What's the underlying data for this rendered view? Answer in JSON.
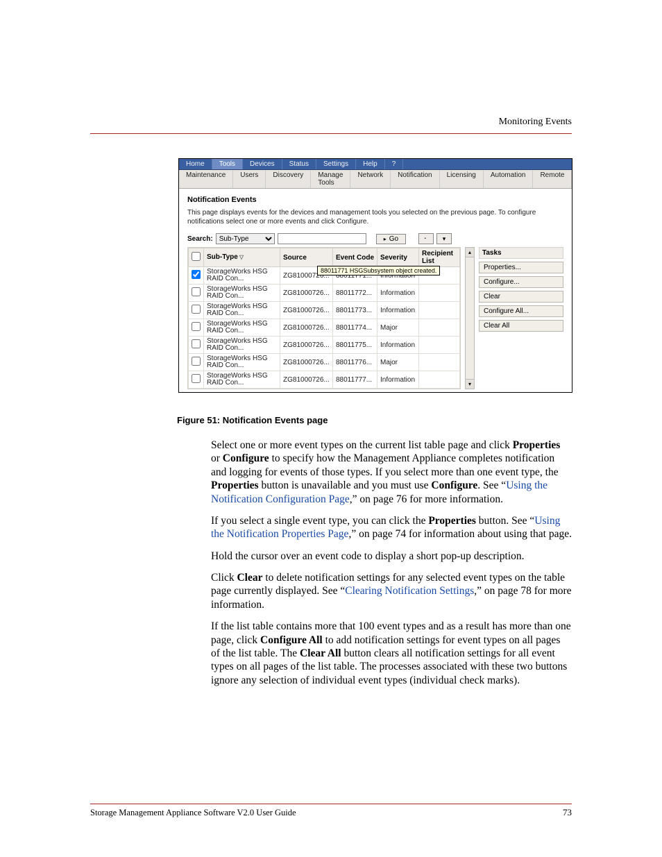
{
  "doc": {
    "running_header": "Monitoring Events",
    "figure_caption_label": "Figure 51:",
    "figure_caption_text": "Notification Events page",
    "footer_left": "Storage Management Appliance Software V2.0 User Guide",
    "footer_page": "73"
  },
  "ui": {
    "primary_nav": [
      "Home",
      "Tools",
      "Devices",
      "Status",
      "Settings",
      "Help",
      "?"
    ],
    "primary_light_indices": [
      1
    ],
    "secondary_nav": [
      "Maintenance",
      "Users",
      "Discovery",
      "Manage Tools",
      "Network",
      "Notification",
      "Licensing",
      "Automation",
      "Remote"
    ],
    "title": "Notification Events",
    "desc": "This page displays events for the devices and management tools you selected on the previous page. To configure notifications select one or more events and click Configure.",
    "search_label": "Search:",
    "search_select": "Sub-Type",
    "go_label": "Go",
    "columns": [
      "",
      "Sub-Type",
      "Source",
      "Event Code",
      "Severity",
      "Recipient List"
    ],
    "sort_col_index": 1,
    "rows": [
      {
        "checked": true,
        "subtype": "StorageWorks HSG RAID Con...",
        "source": "ZG81000726...",
        "code": "88011771...",
        "severity": "Information",
        "recip": ""
      },
      {
        "checked": false,
        "subtype": "StorageWorks HSG RAID Con...",
        "source": "ZG81000726...",
        "code": "88011772...",
        "severity": "Information",
        "recip": ""
      },
      {
        "checked": false,
        "subtype": "StorageWorks HSG RAID Con...",
        "source": "ZG81000726...",
        "code": "88011773...",
        "severity": "Information",
        "recip": ""
      },
      {
        "checked": false,
        "subtype": "StorageWorks HSG RAID Con...",
        "source": "ZG81000726...",
        "code": "88011774...",
        "severity": "Major",
        "recip": ""
      },
      {
        "checked": false,
        "subtype": "StorageWorks HSG RAID Con...",
        "source": "ZG81000726...",
        "code": "88011775...",
        "severity": "Information",
        "recip": ""
      },
      {
        "checked": false,
        "subtype": "StorageWorks HSG RAID Con...",
        "source": "ZG81000726...",
        "code": "88011776...",
        "severity": "Major",
        "recip": ""
      },
      {
        "checked": false,
        "subtype": "StorageWorks HSG RAID Con...",
        "source": "ZG81000726...",
        "code": "88011777...",
        "severity": "Information",
        "recip": ""
      }
    ],
    "tooltip": "88011771 HSGSubsystem object created.",
    "tasks_title": "Tasks",
    "tasks": [
      "Properties...",
      "Configure...",
      "Clear",
      "Configure All...",
      "Clear All"
    ],
    "colors": {
      "primary_nav_bg": "#3a5fa0",
      "primary_nav_fg": "#ffffff",
      "secondary_nav_bg": "#e8e5e1",
      "button_bg": "#f2efe9",
      "header_row_bg": "#f1eee9",
      "border": "#d4d0ca",
      "tooltip_bg": "#ffffe1"
    }
  },
  "body": {
    "p1_a": "Select one or more event types on the current list table page and click ",
    "p1_b": "Properties",
    "p1_c": " or ",
    "p1_d": "Configure",
    "p1_e": " to specify how the Management Appliance completes notification and logging for events of those types. If you select more than one event type, the ",
    "p1_f": "Properties",
    "p1_g": " button is unavailable and you must use ",
    "p1_h": "Configure",
    "p1_i": ". See “",
    "p1_link1": "Using the Notification Configuration Page",
    "p1_j": ",” on page 76 for more information.",
    "p2_a": "If you select a single event type, you can click the ",
    "p2_b": "Properties",
    "p2_c": " button. See “",
    "p2_link": "Using the Notification Properties Page",
    "p2_d": ",” on page 74 for information about using that page.",
    "p3": "Hold the cursor over an event code to display a short pop-up description.",
    "p4_a": "Click ",
    "p4_b": "Clear",
    "p4_c": " to delete notification settings for any selected event types on the table page currently displayed. See “",
    "p4_link": "Clearing Notification Settings",
    "p4_d": ",” on page 78 for more information.",
    "p5_a": "If the list table contains more that 100 event types and as a result has more than one page, click ",
    "p5_b": "Configure All",
    "p5_c": " to add notification settings for event types on all pages of the list table. The ",
    "p5_d": "Clear All",
    "p5_e": " button clears all notification settings for all event types on all pages of the list table. The processes associated with these two buttons ignore any selection of individual event types (individual check marks)."
  }
}
